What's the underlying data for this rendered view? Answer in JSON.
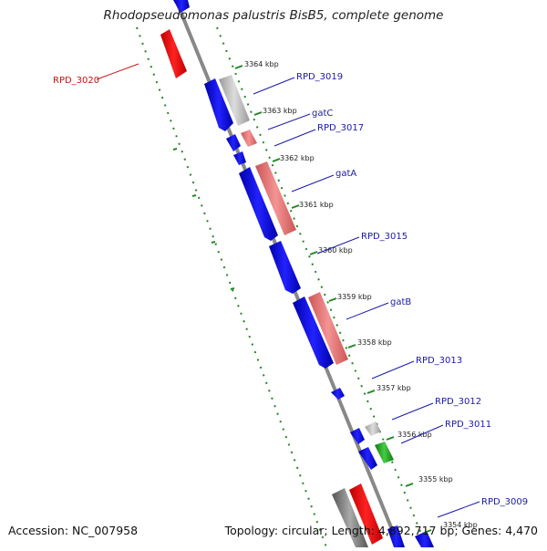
{
  "title": "Rhodopseudomonas palustris BisB5, complete genome",
  "accession": "Accession: NC_007958",
  "topology": "Topology: circular; Length: 4,892,717 bp; Genes: 4,470",
  "colors": {
    "forward_cds": "#1111dd",
    "reverse_cds_red": "#ee1111",
    "pink_cds": "#e87878",
    "gray_cds": "#aaaaaa",
    "green_cds": "#22aa22",
    "tick": "#228822",
    "label_blue": "#1a1aaa",
    "label_red": "#cc1111",
    "backbone": "#888888"
  },
  "ticks": [
    "3364 kbp",
    "3363 kbp",
    "3362 kbp",
    "3361 kbp",
    "3360 kbp",
    "3359 kbp",
    "3358 kbp",
    "3357 kbp",
    "3356 kbp",
    "3355 kbp",
    "3354 kbp"
  ],
  "genes": [
    {
      "id": "rpd3020",
      "label": "RPD_3020",
      "color": "red"
    },
    {
      "id": "rpd3019",
      "label": "RPD_3019",
      "color": "blue"
    },
    {
      "id": "gatc",
      "label": "gatC",
      "color": "blue"
    },
    {
      "id": "rpd3017",
      "label": "RPD_3017",
      "color": "blue"
    },
    {
      "id": "gata",
      "label": "gatA",
      "color": "blue"
    },
    {
      "id": "rpd3015",
      "label": "RPD_3015",
      "color": "blue"
    },
    {
      "id": "gatb",
      "label": "gatB",
      "color": "blue"
    },
    {
      "id": "rpd3013",
      "label": "RPD_3013",
      "color": "blue"
    },
    {
      "id": "rpd3012",
      "label": "RPD_3012",
      "color": "blue"
    },
    {
      "id": "rpd3011",
      "label": "RPD_3011",
      "color": "blue"
    },
    {
      "id": "rpd3009",
      "label": "RPD_3009",
      "color": "blue"
    }
  ]
}
